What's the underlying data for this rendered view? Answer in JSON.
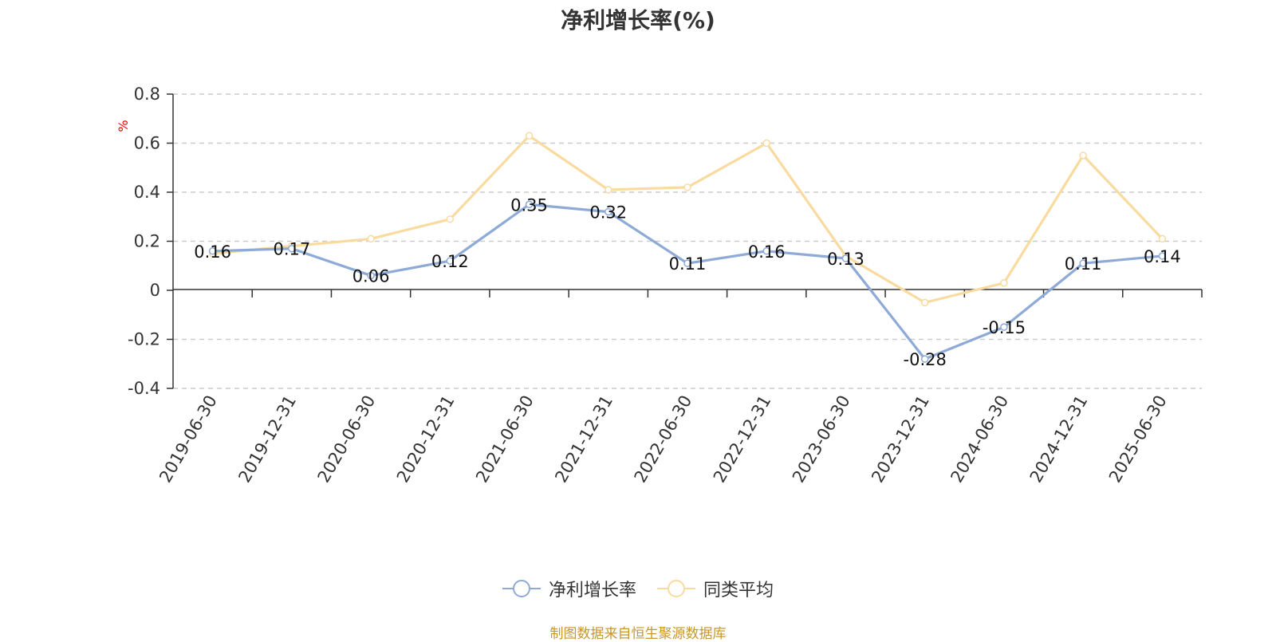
{
  "title": "净利增长率(%)",
  "source_note": "制图数据来自恒生聚源数据库",
  "colors": {
    "series1": "#8eaad6",
    "series2": "#f9dba0",
    "axis": "#333333",
    "grid": "#cccccc",
    "unit": "#ff0000",
    "source": "#c8962a"
  },
  "chart_data": {
    "type": "line",
    "title": "净利增长率(%)",
    "ylabel": "%",
    "ylim": [
      -0.4,
      0.8
    ],
    "yticks": [
      -0.4,
      -0.2,
      0,
      0.2,
      0.4,
      0.6,
      0.8
    ],
    "ytick_labels": [
      "-0.4",
      "-0.2",
      "0",
      "0.2",
      "0.4",
      "0.6",
      "0.8"
    ],
    "grid": true,
    "legend_position": "bottom-center",
    "categories": [
      "2019-06-30",
      "2019-12-31",
      "2020-06-30",
      "2020-12-31",
      "2021-06-30",
      "2021-12-31",
      "2022-06-30",
      "2022-12-31",
      "2023-06-30",
      "2023-12-31",
      "2024-06-30",
      "2024-12-31",
      "2025-06-30"
    ],
    "series": [
      {
        "name": "净利增长率",
        "values": [
          0.16,
          0.17,
          0.06,
          0.12,
          0.35,
          0.32,
          0.11,
          0.16,
          0.13,
          -0.28,
          -0.15,
          0.11,
          0.14
        ],
        "labels": [
          "0.16",
          "0.17",
          "0.06",
          "0.12",
          "0.35",
          "0.32",
          "0.11",
          "0.16",
          "0.13",
          "-0.28",
          "-0.15",
          "0.11",
          "0.14"
        ]
      },
      {
        "name": "同类平均",
        "values": [
          0.15,
          0.18,
          0.21,
          0.29,
          0.63,
          0.41,
          0.42,
          0.6,
          0.14,
          -0.05,
          0.03,
          0.55,
          0.21
        ]
      }
    ]
  }
}
